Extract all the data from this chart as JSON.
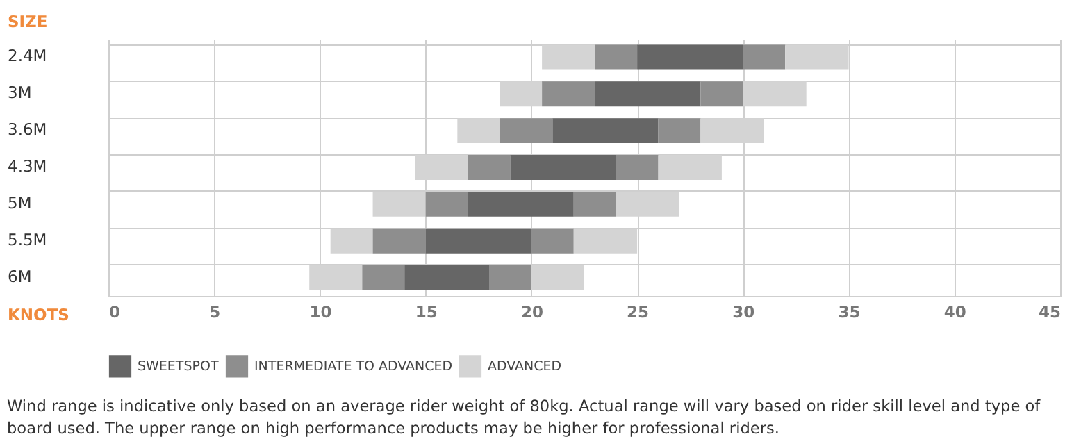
{
  "chart_data": {
    "type": "bar",
    "orientation": "horizontal",
    "ylabel": "SIZE",
    "xlabel": "KNOTS",
    "categories": [
      "2.4M",
      "3M",
      "3.6M",
      "4.3M",
      "5M",
      "5.5M",
      "6M"
    ],
    "series": [
      {
        "color": "#d4d4d4",
        "base": [
          20.5,
          18.5,
          16.5,
          14.5,
          12.5,
          10.5,
          9.5
        ],
        "values": [
          2.5,
          2,
          2,
          2.5,
          2.5,
          2,
          2.5
        ]
      },
      {
        "color": "#8e8e8e",
        "base": [
          23,
          20.5,
          18.5,
          17,
          15,
          12.5,
          12
        ],
        "values": [
          2,
          2.5,
          2.5,
          2,
          2,
          2.5,
          2
        ]
      },
      {
        "name": "SWEETSPOT",
        "color": "#666666",
        "base": [
          25,
          23,
          21,
          19,
          17,
          15,
          14
        ],
        "values": [
          5,
          5,
          5,
          5,
          5,
          5,
          4
        ]
      },
      {
        "name": "INTERMEDIATE TO ADVANCED",
        "color": "#8e8e8e",
        "base": [
          30,
          28,
          26,
          24,
          22,
          20,
          18
        ],
        "values": [
          2,
          2,
          2,
          2,
          2,
          2,
          2
        ]
      },
      {
        "name": "ADVANCED",
        "color": "#d4d4d4",
        "base": [
          32,
          30,
          28,
          26,
          24,
          22,
          20
        ],
        "values": [
          3,
          3,
          3,
          3,
          3,
          3,
          2.5
        ]
      }
    ],
    "xlim": [
      0,
      45
    ],
    "xticks": [
      0,
      5,
      10,
      15,
      20,
      25,
      30,
      35,
      40,
      45
    ],
    "grid": true,
    "legend": "bottom",
    "annotations": [
      "Wind range is indicative only based on an average rider weight of 80kg. Actual range will vary based on rider skill level and type of board used. The upper range on high performance products may be higher for professional riders."
    ]
  }
}
